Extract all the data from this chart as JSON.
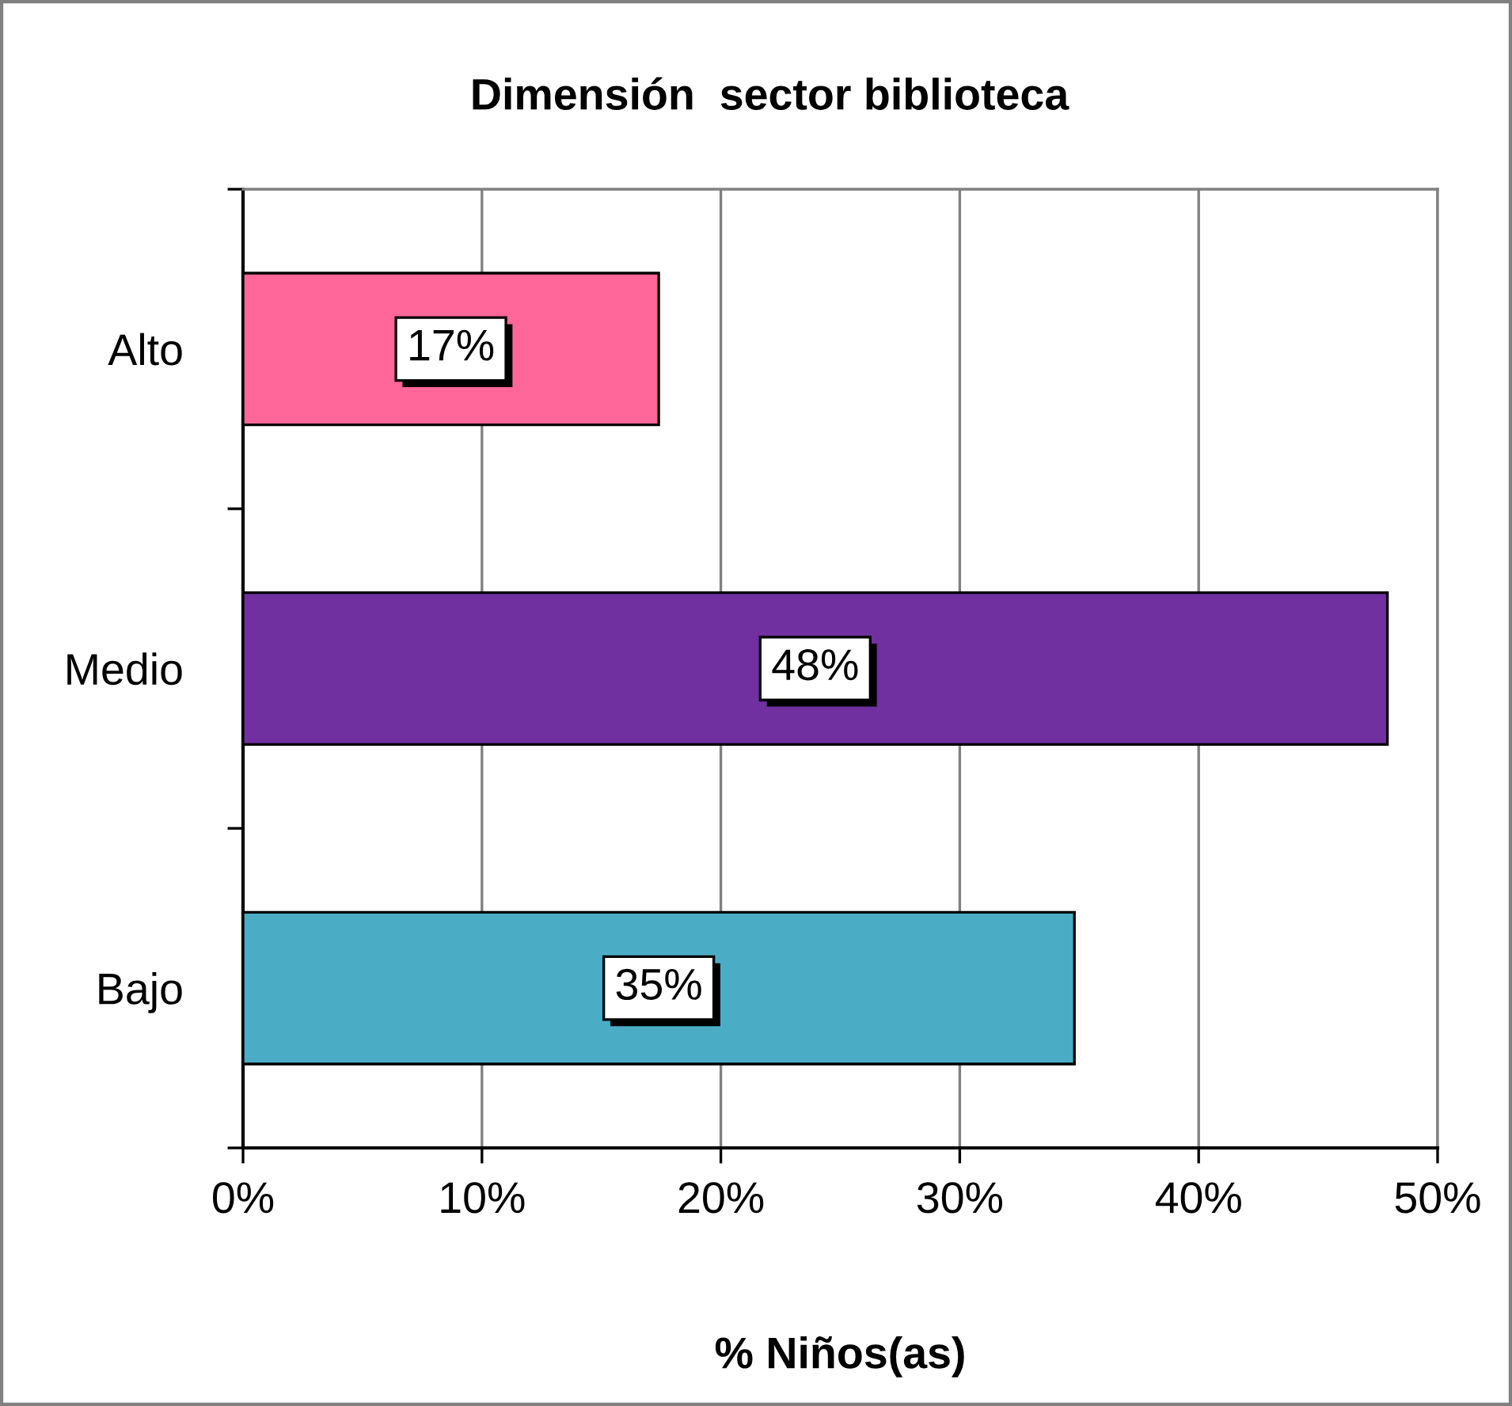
{
  "chart_data": {
    "type": "bar",
    "orientation": "horizontal",
    "title": "Dimensión  sector biblioteca",
    "xlabel": "% Niños(as)",
    "categories": [
      "Alto",
      "Medio",
      "Bajo"
    ],
    "values": [
      17.4,
      47.9,
      34.8
    ],
    "colors": [
      "#ff6699",
      "#7030a0",
      "#4bacc6"
    ],
    "value_labels": [
      "17%",
      "48%",
      "35%"
    ],
    "xlim": [
      0,
      50
    ],
    "xticks": [
      {
        "value": 0,
        "label": "0%"
      },
      {
        "value": 10,
        "label": "10%"
      },
      {
        "value": 20,
        "label": "20%"
      },
      {
        "value": 30,
        "label": "30%"
      },
      {
        "value": 40,
        "label": "40%"
      },
      {
        "value": 50,
        "label": "50%"
      }
    ],
    "grid": "x",
    "legend": false
  }
}
